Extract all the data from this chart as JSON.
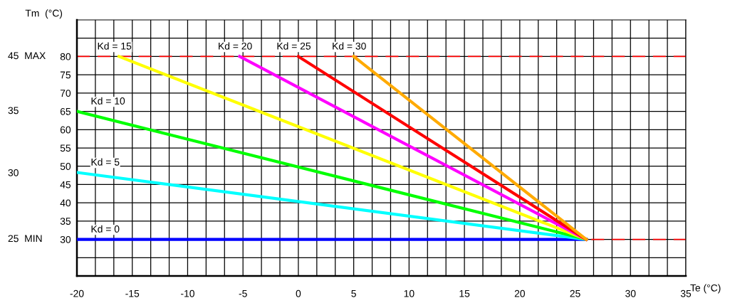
{
  "chart_data": {
    "type": "line",
    "ylabel": "Tm  (°C)",
    "xlabel": "Te (°C)",
    "xlim": [
      -20,
      35
    ],
    "ylim": [
      20,
      90
    ],
    "xticks": [
      -20,
      {
        "value": -18.333,
        "label": null
      },
      {
        "value": -16.667,
        "label": null
      },
      -15,
      {
        "value": -13.333,
        "label": null
      },
      {
        "value": -11.667,
        "label": null
      },
      -10,
      {
        "value": -8.333,
        "label": null
      },
      {
        "value": -6.667,
        "label": null
      },
      -5,
      {
        "value": -3.333,
        "label": null
      },
      {
        "value": -1.667,
        "label": null
      },
      0,
      {
        "value": 1.667,
        "label": null
      },
      {
        "value": 3.333,
        "label": null
      },
      5,
      {
        "value": 6.667,
        "label": null
      },
      {
        "value": 8.333,
        "label": null
      },
      10,
      {
        "value": 11.667,
        "label": null
      },
      {
        "value": 13.333,
        "label": null
      },
      15,
      {
        "value": 16.667,
        "label": null
      },
      {
        "value": 18.333,
        "label": null
      },
      20,
      {
        "value": 21.667,
        "label": null
      },
      {
        "value": 23.333,
        "label": null
      },
      25,
      {
        "value": 26.667,
        "label": null
      },
      {
        "value": 28.333,
        "label": null
      },
      30,
      {
        "value": 31.667,
        "label": null
      },
      {
        "value": 33.333,
        "label": null
      },
      35
    ],
    "yticks": [
      {
        "value": 25,
        "label": null
      },
      30,
      35,
      40,
      45,
      50,
      55,
      60,
      65,
      70,
      75,
      80,
      {
        "value": 85,
        "label": null
      }
    ],
    "grid": true,
    "legend": false,
    "marker": "none",
    "line_style": "solid",
    "series": [
      {
        "name": "Kd = 0",
        "color": "#0000ff",
        "x": [
          -20,
          26
        ],
        "values": [
          30,
          30
        ]
      },
      {
        "name": "Kd = 5",
        "color": "#00ffff",
        "x": [
          -20,
          26
        ],
        "values": [
          48.3,
          30
        ]
      },
      {
        "name": "Kd = 10",
        "color": "#00ff00",
        "x": [
          -20,
          26
        ],
        "values": [
          65,
          30
        ]
      },
      {
        "name": "Kd = 15",
        "color": "#ffff00",
        "x": [
          -16.2,
          26
        ],
        "values": [
          80,
          30
        ]
      },
      {
        "name": "Kd = 20",
        "color": "#ff00ff",
        "x": [
          -5.3,
          26
        ],
        "values": [
          80,
          30
        ]
      },
      {
        "name": "Kd = 25",
        "color": "#ff0000",
        "x": [
          0,
          26
        ],
        "values": [
          80,
          30
        ]
      },
      {
        "name": "Kd = 30",
        "color": "#ffaa00",
        "x": [
          5,
          26
        ],
        "values": [
          80,
          30
        ]
      }
    ],
    "ref_lines": [
      {
        "axis": "y",
        "value": 80,
        "color": "#ff0000",
        "line_style": "dashed"
      },
      {
        "axis": "y",
        "value": 30,
        "color": "#ff0000",
        "line_style": "dashed"
      }
    ],
    "annotations": [
      "45  MAX",
      "35",
      "30",
      "25  MIN"
    ]
  }
}
